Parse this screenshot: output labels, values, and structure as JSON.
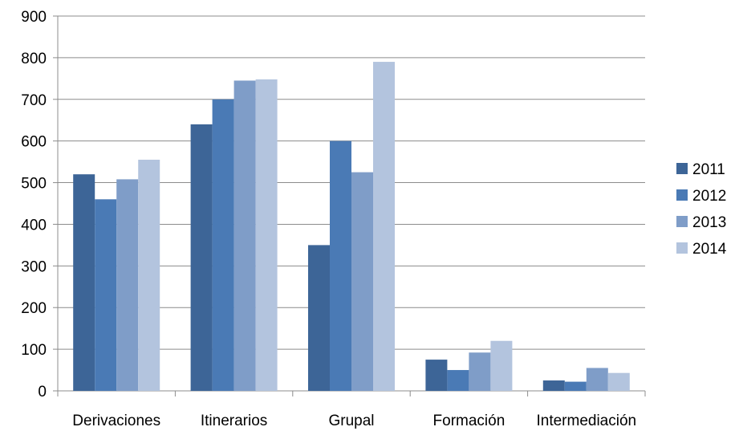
{
  "chart_data": {
    "type": "bar",
    "title": "",
    "xlabel": "",
    "ylabel": "",
    "ylim": [
      0,
      900
    ],
    "yticks": [
      0,
      100,
      200,
      300,
      400,
      500,
      600,
      700,
      800,
      900
    ],
    "grid": true,
    "legend_position": "right",
    "categories": [
      "Derivaciones",
      "Itinerarios",
      "Grupal",
      "Formación",
      "Intermediación"
    ],
    "series": [
      {
        "name": "2011",
        "color": "#3d6597",
        "values": [
          520,
          640,
          350,
          75,
          25
        ]
      },
      {
        "name": "2012",
        "color": "#4a7ab5",
        "values": [
          460,
          700,
          600,
          50,
          22
        ]
      },
      {
        "name": "2013",
        "color": "#7f9dc8",
        "values": [
          508,
          745,
          525,
          92,
          55
        ]
      },
      {
        "name": "2014",
        "color": "#b3c4de",
        "values": [
          555,
          748,
          790,
          120,
          43
        ]
      }
    ]
  }
}
